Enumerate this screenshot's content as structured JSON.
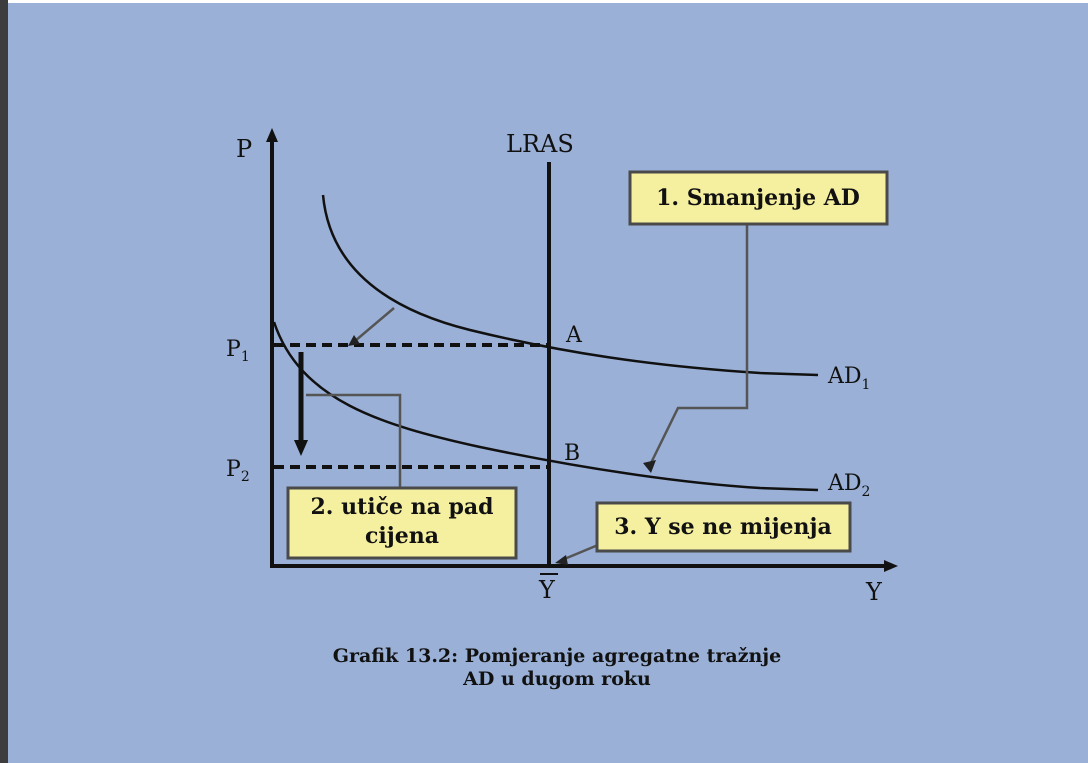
{
  "diagram": {
    "axis_y_label": "P",
    "axis_x_label": "Y",
    "lras_label": "LRAS",
    "price_1_label": "P",
    "price_1_sub": "1",
    "price_2_label": "P",
    "price_2_sub": "2",
    "point_a_label": "A",
    "point_b_label": "B",
    "curve_ad1_label": "AD",
    "curve_ad1_sub": "1",
    "curve_ad2_label": "AD",
    "curve_ad2_sub": "2",
    "potential_output_label": "Y",
    "callouts": {
      "step1": "1. Smanjenje AD",
      "step2_line1": "2. utiče na pad",
      "step2_line2": "cijena",
      "step3": "3. Y se ne mijenja"
    },
    "caption_line1": "Grafik 13.2: Pomjeranje agregatne tražnje",
    "caption_line2": "AD u dugom roku"
  },
  "colors": {
    "background": "#9ab0d6",
    "callout_fill": "#f5f0a0",
    "callout_border": "#4a4a4a",
    "leader_line": "#555555",
    "ink": "#111111"
  }
}
